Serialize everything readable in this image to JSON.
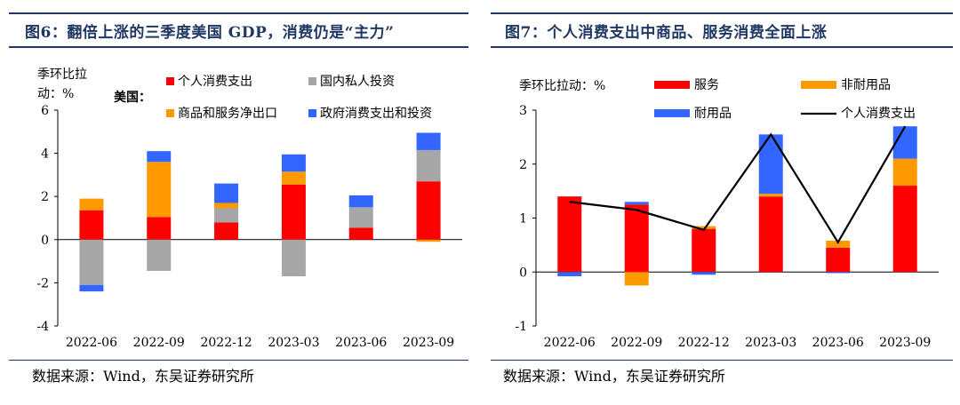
{
  "panels": [
    {
      "title": "图6：翻倍上涨的三季度美国 GDP，消费仍是“主力”",
      "source": "数据来源：Wind，东吴证券研究所"
    },
    {
      "title": "图7：个人消费支出中商品、服务消费全面上涨",
      "source": "数据来源：Wind，东吴证券研究所"
    }
  ],
  "chart_data": [
    {
      "type": "bar",
      "stacked": true,
      "ylabel": "季环比拉动：%",
      "legend_prefix": "美国：",
      "categories": [
        "2022-06",
        "2022-09",
        "2022-12",
        "2023-03",
        "2023-06",
        "2023-09"
      ],
      "ylim": [
        -4,
        6
      ],
      "yticks": [
        -4,
        -2,
        0,
        2,
        4,
        6
      ],
      "series": [
        {
          "name": "个人消费支出",
          "color": "#ff0000",
          "values": [
            1.35,
            1.05,
            0.8,
            2.55,
            0.55,
            2.7
          ]
        },
        {
          "name": "国内私人投资",
          "color": "#a6a6a6",
          "values": [
            -2.1,
            -1.45,
            0.65,
            -1.7,
            0.95,
            1.45
          ]
        },
        {
          "name": "商品和服务净出口",
          "color": "#ff9900",
          "values": [
            0.55,
            2.55,
            0.25,
            0.6,
            0.0,
            -0.1
          ]
        },
        {
          "name": "政府消费支出和投资",
          "color": "#3366ff",
          "values": [
            -0.3,
            0.5,
            0.9,
            0.8,
            0.55,
            0.8
          ]
        }
      ]
    },
    {
      "type": "bar",
      "stacked": true,
      "ylabel": "季环比拉动：%",
      "categories": [
        "2022-06",
        "2022-09",
        "2022-12",
        "2023-03",
        "2023-06",
        "2023-09"
      ],
      "ylim": [
        -1,
        3
      ],
      "yticks": [
        -1,
        0,
        1,
        2,
        3
      ],
      "series": [
        {
          "name": "服务",
          "color": "#ff0000",
          "values": [
            1.4,
            1.25,
            0.8,
            1.4,
            0.45,
            1.6
          ]
        },
        {
          "name": "非耐用品",
          "color": "#ff9900",
          "values": [
            0.0,
            -0.25,
            0.05,
            0.05,
            0.13,
            0.5
          ]
        },
        {
          "name": "耐用品",
          "color": "#3366ff",
          "values": [
            -0.08,
            0.05,
            -0.05,
            1.1,
            -0.02,
            0.6
          ]
        }
      ],
      "line": {
        "name": "个人消费支出",
        "color": "#000000",
        "values": [
          1.3,
          1.15,
          0.78,
          2.55,
          0.55,
          2.7
        ]
      }
    }
  ]
}
